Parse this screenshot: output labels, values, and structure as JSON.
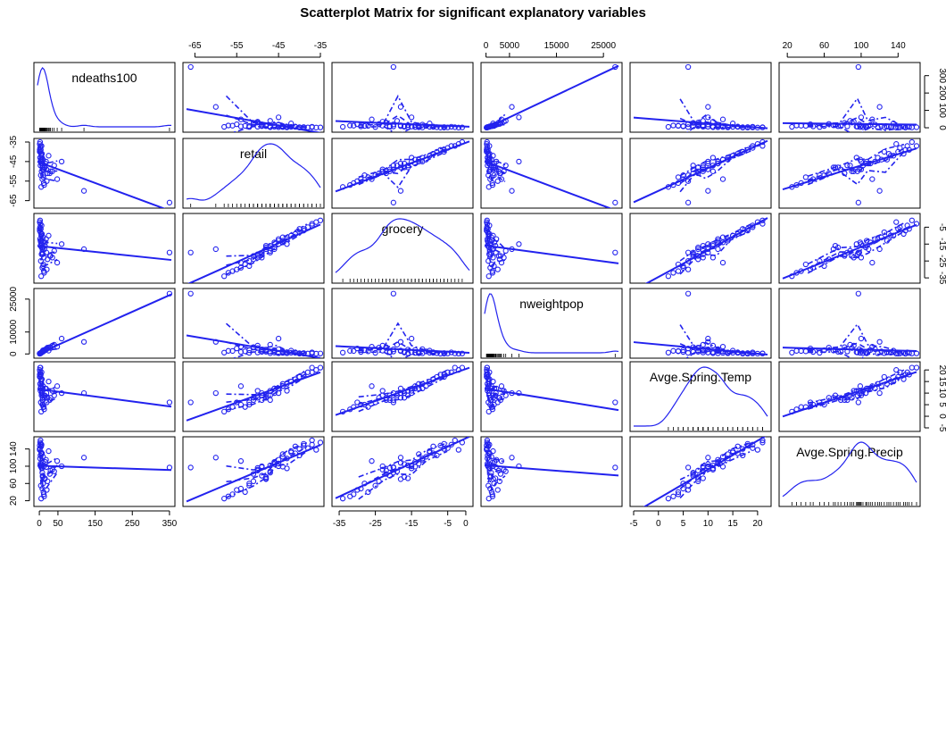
{
  "title": "Scatterplot Matrix for significant explanatory variables",
  "colors": {
    "series": "#2222ee",
    "axis": "#000000",
    "rug": "#000000"
  },
  "chart_data": {
    "type": "scatter",
    "subtype": "scatterplot-matrix",
    "title": "Scatterplot Matrix for significant explanatory variables",
    "variables": [
      "ndeaths100",
      "retail",
      "grocery",
      "nweightpop",
      "Avge.Spring.Temp",
      "Avge.Spring.Precip"
    ],
    "diagonal": "density",
    "offdiagonal": "scatter with least-squares line and smoother bands (solid, dashed, dash-dot)",
    "axes": [
      {
        "name": "ndeaths100",
        "lim": [
          -5,
          355
        ],
        "ticks": [
          0,
          50,
          150,
          250,
          350
        ],
        "axis_ticks": [
          0,
          100,
          200,
          300
        ]
      },
      {
        "name": "retail",
        "lim": [
          -67,
          -35
        ],
        "ticks": [
          -65,
          -55,
          -45,
          -35
        ]
      },
      {
        "name": "grocery",
        "lim": [
          -36,
          1
        ],
        "ticks": [
          -35,
          -25,
          -15,
          -5,
          0
        ],
        "side_ticks": [
          -35,
          -25,
          -15,
          -5
        ]
      },
      {
        "name": "nweightpop",
        "lim": [
          -300,
          28200
        ],
        "ticks": [
          0,
          5000,
          15000,
          25000
        ],
        "side_ticks": [
          0,
          10000,
          25000
        ]
      },
      {
        "name": "Avge.Spring.Temp",
        "lim": [
          -5,
          22
        ],
        "ticks": [
          -5,
          0,
          5,
          10,
          15,
          20
        ]
      },
      {
        "name": "Avge.Spring.Precip",
        "lim": [
          15,
          160
        ],
        "ticks": [
          20,
          60,
          100,
          140
        ],
        "top_ticks": [
          20,
          60,
          100,
          140
        ]
      }
    ],
    "points": [
      [
        350,
        -66,
        -20,
        27500,
        6,
        97
      ],
      [
        120,
        -60,
        -18,
        5500,
        10,
        120
      ],
      [
        48,
        -54,
        -26,
        3300,
        13,
        112
      ],
      [
        30,
        -50,
        -22,
        2700,
        8,
        90
      ],
      [
        12,
        -49,
        -23,
        1500,
        9,
        100
      ],
      [
        9,
        -46,
        -18,
        1300,
        12,
        108
      ],
      [
        6,
        -44,
        -13,
        700,
        14,
        128
      ],
      [
        5,
        -41,
        -9,
        500,
        16,
        146
      ],
      [
        4,
        -39,
        -6,
        400,
        18,
        152
      ],
      [
        3,
        -37,
        -3,
        250,
        21,
        160
      ],
      [
        7,
        -43,
        -15,
        800,
        11,
        95
      ],
      [
        8,
        -47,
        -20,
        1100,
        7,
        85
      ],
      [
        10,
        -52,
        -28,
        1700,
        5,
        60
      ],
      [
        15,
        -48,
        -16,
        2000,
        9,
        72
      ],
      [
        18,
        -45,
        -12,
        2200,
        12,
        115
      ],
      [
        20,
        -55,
        -30,
        2500,
        6,
        45
      ],
      [
        22,
        -51,
        -24,
        2900,
        8,
        65
      ],
      [
        25,
        -42,
        -10,
        1500,
        15,
        135
      ],
      [
        2,
        -38,
        -5,
        200,
        19,
        142
      ],
      [
        1,
        -36,
        -2,
        150,
        20,
        138
      ],
      [
        3,
        -40,
        -8,
        350,
        17,
        125
      ],
      [
        6,
        -46,
        -17,
        650,
        10,
        105
      ],
      [
        4,
        -44,
        -14,
        450,
        13,
        99
      ],
      [
        9,
        -49,
        -21,
        950,
        7,
        78
      ],
      [
        11,
        -53,
        -27,
        1200,
        4,
        40
      ],
      [
        13,
        -57,
        -32,
        1400,
        3,
        30
      ],
      [
        5,
        -58,
        -34,
        600,
        2,
        25
      ],
      [
        40,
        -47,
        -19,
        4200,
        9,
        88
      ],
      [
        35,
        -50,
        -23,
        3800,
        11,
        92
      ],
      [
        60,
        -45,
        -15,
        7000,
        10,
        100
      ],
      [
        2,
        -43,
        -12,
        300,
        14,
        118
      ],
      [
        7,
        -41,
        -9,
        750,
        16,
        130
      ],
      [
        14,
        -48,
        -18,
        1550,
        8,
        70
      ],
      [
        16,
        -46,
        -14,
        1800,
        12,
        110
      ],
      [
        1,
        -39,
        -7,
        120,
        18,
        148
      ],
      [
        4,
        -52,
        -25,
        500,
        6,
        55
      ],
      [
        8,
        -54,
        -29,
        900,
        5,
        48
      ],
      [
        3,
        -47,
        -16,
        330,
        11,
        102
      ],
      [
        6,
        -50,
        -21,
        680,
        9,
        96
      ],
      [
        10,
        -44,
        -11,
        1150,
        13,
        122
      ],
      [
        2,
        -35,
        -1,
        220,
        21,
        155
      ],
      [
        5,
        -42,
        -10,
        560,
        15,
        132
      ],
      [
        12,
        -56,
        -31,
        1350,
        4,
        35
      ],
      [
        19,
        -49,
        -20,
        2100,
        10,
        98
      ],
      [
        1,
        -40,
        -6,
        130,
        17,
        140
      ],
      [
        3,
        -45,
        -13,
        310,
        12,
        106
      ],
      [
        28,
        -51,
        -22,
        3100,
        7,
        82
      ],
      [
        6,
        -37,
        -4,
        720,
        19,
        150
      ],
      [
        9,
        -48,
        -17,
        1000,
        8,
        75
      ]
    ]
  }
}
